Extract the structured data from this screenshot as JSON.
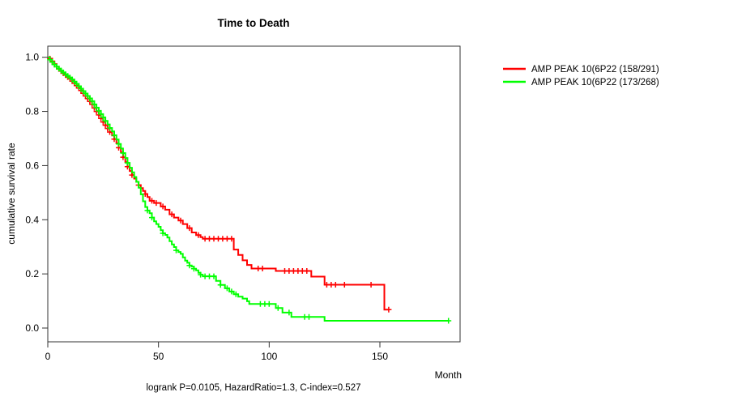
{
  "title": "Time to Death",
  "subtitle": "logrank P=0.0105, HazardRatio=1.3, C-index=0.527",
  "axes": {
    "x": {
      "label": "Month",
      "ticks": [
        "0",
        "50",
        "100",
        "150"
      ],
      "tick_values": [
        0,
        50,
        100,
        150
      ]
    },
    "y": {
      "label": "cumulative survival rate",
      "ticks": [
        "1.0",
        "0.8",
        "0.6",
        "0.4",
        "0.2",
        "0.0"
      ],
      "tick_values": [
        1.0,
        0.8,
        0.6,
        0.4,
        0.2,
        0.0
      ]
    }
  },
  "legend": {
    "items": [
      {
        "label": "AMP PEAK 10(6P22 (158/291)",
        "color": "#ff0000"
      },
      {
        "label": "AMP PEAK 10(6P22 (173/268)",
        "color": "#00ff00"
      }
    ]
  },
  "chart_data": {
    "type": "line",
    "subtype": "kaplan-meier-step",
    "title": "Time to Death",
    "xlabel": "Month",
    "ylabel": "cumulative survival rate",
    "xlim": [
      0,
      186
    ],
    "ylim": [
      0,
      1.0
    ],
    "grid": false,
    "legend_position": "top-right-outside",
    "annotation": "logrank P=0.0105, HazardRatio=1.3, C-index=0.527",
    "series": [
      {
        "name": "AMP PEAK 10(6P22 (158/291)",
        "color": "#ff0000",
        "end_month": 154,
        "steps": [
          [
            0,
            1.0
          ],
          [
            1,
            0.995
          ],
          [
            2,
            0.985
          ],
          [
            3,
            0.975
          ],
          [
            4,
            0.965
          ],
          [
            5,
            0.957
          ],
          [
            6,
            0.949
          ],
          [
            7,
            0.941
          ],
          [
            8,
            0.934
          ],
          [
            9,
            0.927
          ],
          [
            10,
            0.92
          ],
          [
            11,
            0.912
          ],
          [
            12,
            0.904
          ],
          [
            13,
            0.895
          ],
          [
            14,
            0.886
          ],
          [
            15,
            0.877
          ],
          [
            16,
            0.867
          ],
          [
            17,
            0.857
          ],
          [
            18,
            0.847
          ],
          [
            19,
            0.837
          ],
          [
            20,
            0.826
          ],
          [
            21,
            0.813
          ],
          [
            22,
            0.8
          ],
          [
            23,
            0.787
          ],
          [
            24,
            0.774
          ],
          [
            25,
            0.761
          ],
          [
            26,
            0.749
          ],
          [
            27,
            0.737
          ],
          [
            28,
            0.724
          ],
          [
            29,
            0.711
          ],
          [
            30,
            0.698
          ],
          [
            31,
            0.682
          ],
          [
            32,
            0.666
          ],
          [
            33,
            0.649
          ],
          [
            34,
            0.631
          ],
          [
            35,
            0.613
          ],
          [
            36,
            0.596
          ],
          [
            37,
            0.58
          ],
          [
            38,
            0.565
          ],
          [
            39,
            0.552
          ],
          [
            40,
            0.54
          ],
          [
            41,
            0.528
          ],
          [
            42,
            0.517
          ],
          [
            43,
            0.506
          ],
          [
            44,
            0.495
          ],
          [
            45,
            0.484
          ],
          [
            46,
            0.47
          ],
          [
            48,
            0.462
          ],
          [
            51,
            0.449
          ],
          [
            53,
            0.437
          ],
          [
            55,
            0.42
          ],
          [
            57,
            0.408
          ],
          [
            59,
            0.397
          ],
          [
            61,
            0.384
          ],
          [
            63,
            0.369
          ],
          [
            65,
            0.353
          ],
          [
            67,
            0.343
          ],
          [
            69,
            0.336
          ],
          [
            70,
            0.33
          ],
          [
            84,
            0.29
          ],
          [
            86,
            0.27
          ],
          [
            88,
            0.25
          ],
          [
            90,
            0.233
          ],
          [
            92,
            0.22
          ],
          [
            103,
            0.211
          ],
          [
            119,
            0.19
          ],
          [
            125,
            0.16
          ],
          [
            152,
            0.068
          ]
        ],
        "censor_months": [
          1,
          2,
          3,
          4,
          5,
          6,
          7,
          8,
          9,
          10,
          11,
          12,
          13,
          14,
          15,
          16,
          17,
          18,
          19,
          20,
          21,
          22,
          23,
          24,
          25,
          26,
          27,
          28,
          30,
          32,
          34,
          36,
          38,
          41,
          44,
          47,
          49,
          52,
          56,
          60,
          64,
          68,
          71,
          73,
          75,
          77,
          79,
          81,
          83,
          95,
          97,
          107,
          109,
          111,
          113,
          115,
          117,
          126,
          128,
          130,
          134,
          146,
          154
        ]
      },
      {
        "name": "AMP PEAK 10(6P22 (173/268)",
        "color": "#00ff00",
        "end_month": 181,
        "steps": [
          [
            0,
            1.0
          ],
          [
            1,
            0.991
          ],
          [
            2,
            0.982
          ],
          [
            3,
            0.973
          ],
          [
            4,
            0.965
          ],
          [
            5,
            0.958
          ],
          [
            6,
            0.951
          ],
          [
            7,
            0.944
          ],
          [
            8,
            0.937
          ],
          [
            9,
            0.931
          ],
          [
            10,
            0.925
          ],
          [
            11,
            0.918
          ],
          [
            12,
            0.91
          ],
          [
            13,
            0.902
          ],
          [
            14,
            0.893
          ],
          [
            15,
            0.884
          ],
          [
            16,
            0.875
          ],
          [
            17,
            0.866
          ],
          [
            18,
            0.857
          ],
          [
            19,
            0.848
          ],
          [
            20,
            0.838
          ],
          [
            21,
            0.826
          ],
          [
            22,
            0.814
          ],
          [
            23,
            0.802
          ],
          [
            24,
            0.79
          ],
          [
            25,
            0.778
          ],
          [
            26,
            0.765
          ],
          [
            27,
            0.752
          ],
          [
            28,
            0.739
          ],
          [
            29,
            0.726
          ],
          [
            30,
            0.712
          ],
          [
            31,
            0.696
          ],
          [
            32,
            0.68
          ],
          [
            33,
            0.663
          ],
          [
            34,
            0.646
          ],
          [
            35,
            0.628
          ],
          [
            36,
            0.61
          ],
          [
            37,
            0.592
          ],
          [
            38,
            0.575
          ],
          [
            39,
            0.558
          ],
          [
            40,
            0.54
          ],
          [
            41,
            0.518
          ],
          [
            42,
            0.494
          ],
          [
            43,
            0.468
          ],
          [
            44,
            0.447
          ],
          [
            45,
            0.434
          ],
          [
            46,
            0.424
          ],
          [
            47,
            0.408
          ],
          [
            48,
            0.394
          ],
          [
            49,
            0.384
          ],
          [
            50,
            0.374
          ],
          [
            51,
            0.361
          ],
          [
            52,
            0.35
          ],
          [
            53,
            0.344
          ],
          [
            54,
            0.334
          ],
          [
            55,
            0.321
          ],
          [
            56,
            0.309
          ],
          [
            57,
            0.299
          ],
          [
            58,
            0.287
          ],
          [
            59,
            0.281
          ],
          [
            60,
            0.274
          ],
          [
            61,
            0.261
          ],
          [
            62,
            0.249
          ],
          [
            63,
            0.241
          ],
          [
            64,
            0.231
          ],
          [
            65,
            0.227
          ],
          [
            66,
            0.219
          ],
          [
            67,
            0.213
          ],
          [
            68,
            0.204
          ],
          [
            69,
            0.197
          ],
          [
            70,
            0.191
          ],
          [
            76,
            0.174
          ],
          [
            78,
            0.159
          ],
          [
            80,
            0.147
          ],
          [
            82,
            0.135
          ],
          [
            84,
            0.125
          ],
          [
            86,
            0.116
          ],
          [
            88,
            0.109
          ],
          [
            90,
            0.099
          ],
          [
            91,
            0.089
          ],
          [
            103,
            0.074
          ],
          [
            106,
            0.057
          ],
          [
            110,
            0.041
          ],
          [
            125,
            0.027
          ]
        ],
        "censor_months": [
          1,
          2,
          3,
          4,
          5,
          6,
          7,
          8,
          9,
          10,
          11,
          12,
          13,
          14,
          15,
          16,
          17,
          18,
          19,
          20,
          21,
          22,
          23,
          24,
          25,
          26,
          28,
          30,
          32,
          34,
          36,
          45,
          47,
          52,
          58,
          64,
          66,
          69,
          71,
          73,
          75,
          78,
          81,
          83,
          85,
          96,
          98,
          100,
          104,
          109,
          116,
          118,
          181
        ]
      }
    ]
  }
}
